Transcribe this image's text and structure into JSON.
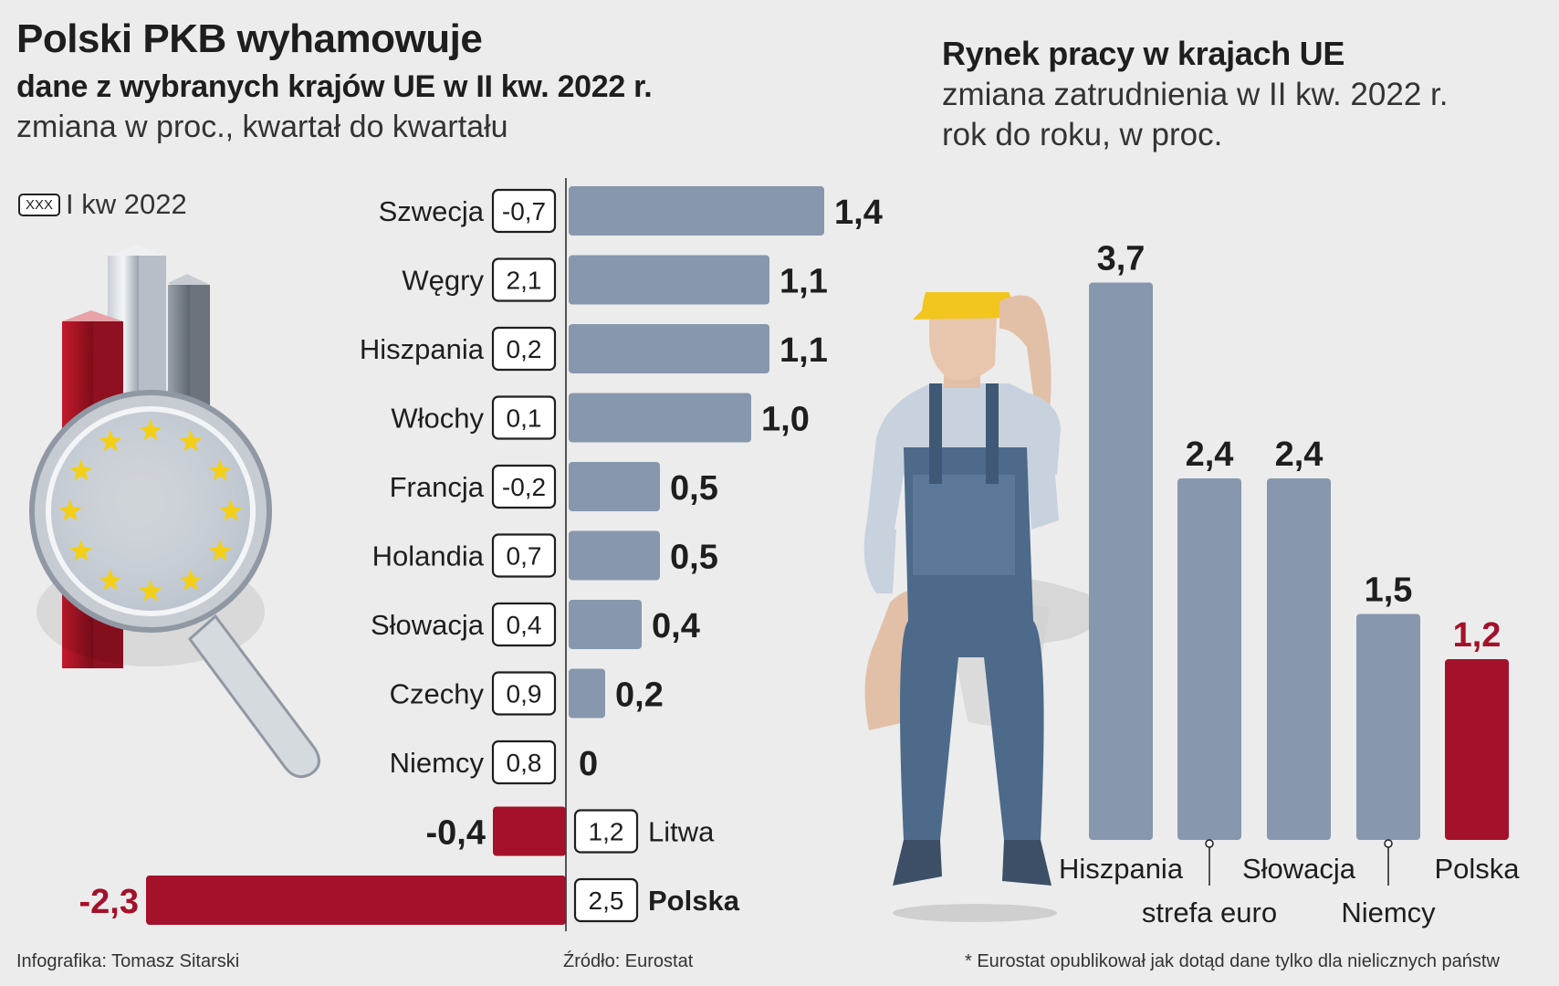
{
  "left": {
    "title": "Polski PKB wyhamowuje",
    "subtitle": "dane z wybranych krajów UE w II kw. 2022 r.",
    "subtitle2": "zmiana w proc., kwartał do kwartału",
    "legend_box": "XXX",
    "legend_label": "I kw 2022"
  },
  "right": {
    "title": "Rynek pracy w krajach UE",
    "subtitle": "zmiana zatrudnienia w II kw. 2022 r.",
    "subtitle2": "rok do roku, w proc."
  },
  "footer": {
    "credit": "Infografika: Tomasz Sitarski",
    "source": "Źródło: Eurostat",
    "note": "* Eurostat opublikował jak dotąd dane tylko dla nielicznych państw"
  },
  "colors": {
    "bar_gray": "#8797ad",
    "bar_red": "#a4112a",
    "background": "#ececec",
    "label_red": "#a4112a"
  },
  "illustration_icons": [
    "magnifier-icon",
    "eu-stars-icon",
    "worker-icon"
  ],
  "chart_data": [
    {
      "type": "bar",
      "orientation": "horizontal",
      "title": "Polski PKB wyhamowuje",
      "subtitle": "dane z wybranych krajów UE w II kw. 2022 r.",
      "unit_note": "zmiana w proc., kwartał do kwartału",
      "legend": "I kw 2022",
      "categories": [
        "Szwecja",
        "Węgry",
        "Hiszpania",
        "Włochy",
        "Francja",
        "Holandia",
        "Słowacja",
        "Czechy",
        "Niemcy",
        "Litwa",
        "Polska"
      ],
      "values": [
        1.4,
        1.1,
        1.1,
        1.0,
        0.5,
        0.5,
        0.4,
        0.2,
        0,
        -0.4,
        -2.3
      ],
      "value_labels": [
        "1,4",
        "1,1",
        "1,1",
        "1,0",
        "0,5",
        "0,5",
        "0,4",
        "0,2",
        "0",
        "-0,4",
        "-2,3"
      ],
      "q1_labels": [
        "-0,7",
        "2,1",
        "0,2",
        "0,1",
        "-0,2",
        "0,7",
        "0,4",
        "0,9",
        "0,8",
        "1,2",
        "2,5"
      ],
      "xlim": [
        -2.3,
        1.4
      ]
    },
    {
      "type": "bar",
      "orientation": "vertical",
      "title": "Rynek pracy w krajach UE",
      "subtitle": "zmiana zatrudnienia w II kw. 2022 r. rok do roku, w proc.",
      "categories": [
        "Hiszpania",
        "strefa euro",
        "Słowacja",
        "Niemcy",
        "Polska"
      ],
      "values": [
        3.7,
        2.4,
        2.4,
        1.5,
        1.2
      ],
      "value_labels": [
        "3,7",
        "2,4",
        "2,4",
        "1,5",
        "1,2"
      ],
      "ylim": [
        0,
        3.7
      ]
    }
  ]
}
